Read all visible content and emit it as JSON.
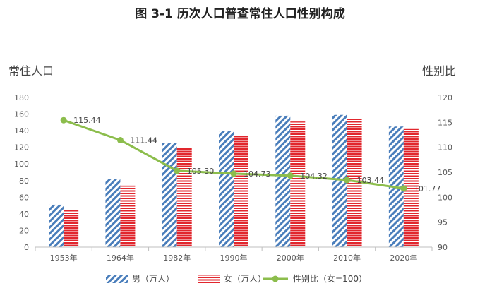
{
  "chart_data": {
    "type": "bar+line",
    "title": "图 3-1   历次人口普查常住人口性别构成",
    "ylabel_left": "常住人口",
    "ylabel_right": "性别比",
    "categories": [
      "1953年",
      "1964年",
      "1982年",
      "1990年",
      "2000年",
      "2010年",
      "2020年"
    ],
    "series": [
      {
        "name": "男（万人）",
        "type": "bar",
        "axis": "left",
        "color": "#4a7ebb",
        "pattern": "diagonal-stripes",
        "values": [
          51,
          82,
          125,
          140,
          158,
          159,
          145
        ]
      },
      {
        "name": "女（万人）",
        "type": "bar",
        "axis": "left",
        "color": "#e1262d",
        "pattern": "horizontal-stripes",
        "values": [
          45,
          74,
          119,
          134,
          151,
          154,
          142
        ]
      },
      {
        "name": "性别比（女=100）",
        "type": "line",
        "axis": "right",
        "color": "#8cbd4c",
        "values": [
          115.44,
          111.44,
          105.3,
          104.73,
          104.32,
          103.44,
          101.77
        ],
        "labels": [
          "115.44",
          "111.44",
          "105.30",
          "104.73",
          "104.32",
          "103.44",
          "101.77"
        ]
      }
    ],
    "ylim_left": [
      0,
      180
    ],
    "yticks_left": [
      0,
      20,
      40,
      60,
      80,
      100,
      120,
      140,
      160,
      180
    ],
    "ylim_right": [
      90,
      120
    ],
    "yticks_right": [
      90,
      95,
      100,
      105,
      110,
      115,
      120
    ],
    "grid": false,
    "legend_position": "bottom"
  }
}
